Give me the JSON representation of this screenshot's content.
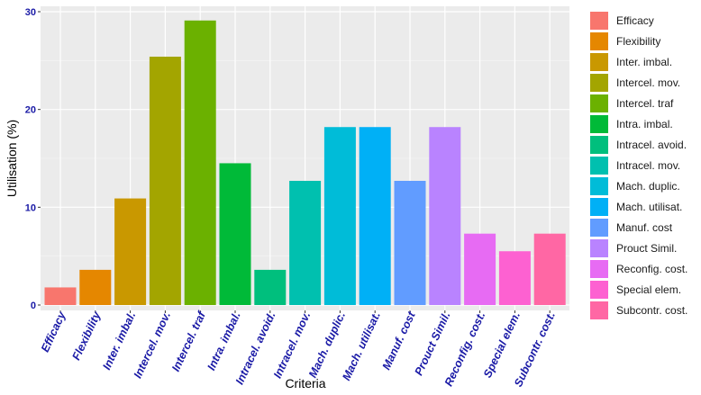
{
  "chart_data": {
    "type": "bar",
    "xlabel": "Criteria",
    "ylabel": "Utilisation (%)",
    "ylim": [
      0,
      30
    ],
    "yticks": [
      0,
      10,
      20,
      30
    ],
    "grid": true,
    "legend_position": "right",
    "categories": [
      "Efficacy",
      "Flexibility",
      "Inter. imbal.",
      "Intercel. mov.",
      "Intercel. traf",
      "Intra. imbal.",
      "Intracel. avoid.",
      "Intracel. mov.",
      "Mach. duplic.",
      "Mach. utilisat.",
      "Manuf. cost",
      "Prouct Simil.",
      "Reconfig. cost.",
      "Special elem.",
      "Subcontr. cost."
    ],
    "values": [
      1.8,
      3.6,
      10.9,
      25.4,
      29.1,
      14.5,
      3.6,
      12.7,
      18.2,
      18.2,
      12.7,
      18.2,
      7.3,
      5.5,
      7.3
    ],
    "colors": [
      "#F8766D",
      "#E58700",
      "#C99800",
      "#A3A500",
      "#6BB100",
      "#00BA38",
      "#00BF7D",
      "#00C0AF",
      "#00BCD8",
      "#00B0F6",
      "#619CFF",
      "#B983FF",
      "#E76BF3",
      "#FD61D1",
      "#FF67A4"
    ]
  }
}
